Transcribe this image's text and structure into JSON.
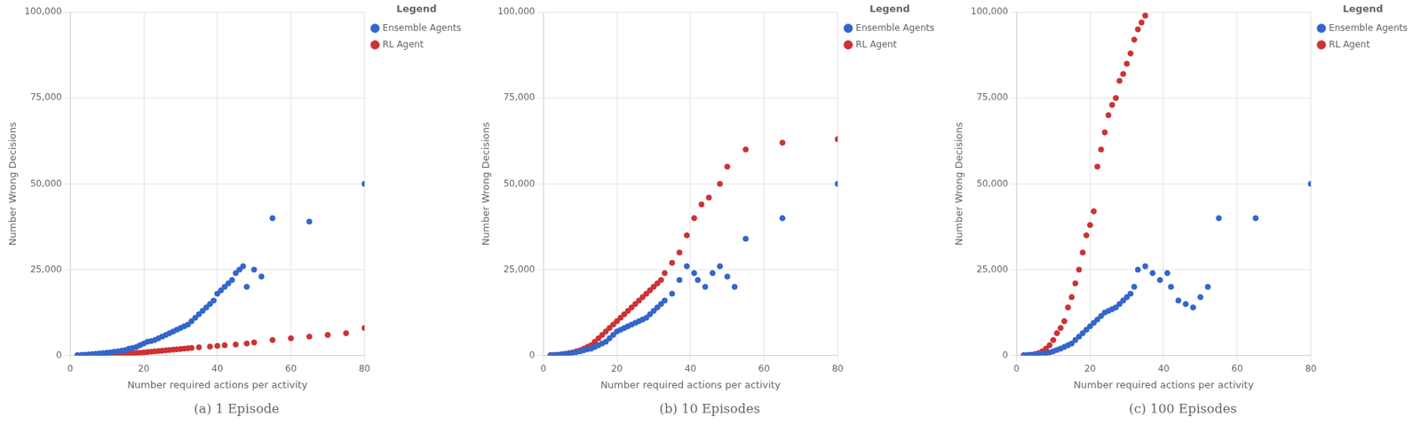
{
  "chart_data": [
    {
      "type": "scatter",
      "title": "(a) 1 Episode",
      "xlabel": "Number required actions per activity",
      "ylabel": "Number Wrong Decisions",
      "legend_title": "Legend",
      "legend": "upper right",
      "grid": true,
      "xlim": [
        0,
        80
      ],
      "xticks": [
        0,
        20,
        40,
        60,
        80
      ],
      "ylim": [
        0,
        100000
      ],
      "yticks": [
        0,
        {
          "value": 25000,
          "label": "25,000"
        },
        {
          "value": 50000,
          "label": "50,000"
        },
        {
          "value": 75000,
          "label": "75,000"
        },
        {
          "value": 100000,
          "label": "100,000"
        }
      ],
      "series": [
        {
          "name": "Ensemble Agents",
          "color": "#3366CC",
          "x": [
            2,
            3,
            4,
            5,
            6,
            7,
            8,
            9,
            10,
            11,
            12,
            13,
            14,
            15,
            16,
            17,
            18,
            19,
            20,
            21,
            22,
            23,
            24,
            25,
            26,
            27,
            28,
            29,
            30,
            31,
            32,
            33,
            34,
            35,
            36,
            37,
            38,
            39,
            40,
            41,
            42,
            43,
            44,
            45,
            46,
            47,
            48,
            50,
            52,
            55,
            65,
            80
          ],
          "values": [
            100,
            150,
            200,
            300,
            400,
            500,
            600,
            700,
            800,
            900,
            1100,
            1200,
            1400,
            1600,
            2000,
            2200,
            2500,
            3000,
            3500,
            4000,
            4200,
            4500,
            5000,
            5500,
            6000,
            6500,
            7000,
            7500,
            8000,
            8500,
            9000,
            10000,
            11000,
            12000,
            13000,
            14000,
            15000,
            16000,
            18000,
            19000,
            20000,
            21000,
            22000,
            24000,
            25000,
            26000,
            20000,
            25000,
            23000,
            40000,
            39000,
            50000
          ]
        },
        {
          "name": "RL Agent",
          "color": "#CC3333",
          "x": [
            2,
            3,
            4,
            5,
            6,
            7,
            8,
            9,
            10,
            11,
            12,
            13,
            14,
            15,
            16,
            17,
            18,
            19,
            20,
            21,
            22,
            23,
            24,
            25,
            26,
            27,
            28,
            29,
            30,
            31,
            32,
            33,
            35,
            38,
            40,
            42,
            45,
            48,
            50,
            55,
            60,
            65,
            70,
            75,
            80
          ],
          "values": [
            50,
            80,
            100,
            130,
            160,
            200,
            250,
            300,
            350,
            400,
            450,
            500,
            550,
            600,
            650,
            700,
            750,
            800,
            900,
            1000,
            1100,
            1200,
            1300,
            1400,
            1500,
            1600,
            1700,
            1800,
            1900,
            2000,
            2100,
            2200,
            2400,
            2600,
            2800,
            3000,
            3200,
            3500,
            3800,
            4500,
            5000,
            5500,
            6000,
            6500,
            8000
          ]
        }
      ]
    },
    {
      "type": "scatter",
      "title": "(b) 10 Episodes",
      "xlabel": "Number required actions per activity",
      "ylabel": "Number Wrong Decisions",
      "legend_title": "Legend",
      "legend": "upper right",
      "grid": true,
      "xlim": [
        0,
        80
      ],
      "xticks": [
        0,
        20,
        40,
        60,
        80
      ],
      "ylim": [
        0,
        100000
      ],
      "yticks": [
        0,
        {
          "value": 25000,
          "label": "25,000"
        },
        {
          "value": 50000,
          "label": "50,000"
        },
        {
          "value": 75000,
          "label": "75,000"
        },
        {
          "value": 100000,
          "label": "100,000"
        }
      ],
      "series": [
        {
          "name": "Ensemble Agents",
          "color": "#3366CC",
          "x": [
            2,
            3,
            4,
            5,
            6,
            7,
            8,
            9,
            10,
            11,
            12,
            13,
            14,
            15,
            16,
            17,
            18,
            19,
            20,
            21,
            22,
            23,
            24,
            25,
            26,
            27,
            28,
            29,
            30,
            31,
            32,
            33,
            35,
            37,
            39,
            41,
            42,
            44,
            46,
            48,
            50,
            52,
            55,
            65,
            80
          ],
          "values": [
            100,
            150,
            200,
            300,
            450,
            600,
            800,
            1000,
            1200,
            1500,
            1800,
            2000,
            2500,
            3000,
            3500,
            4000,
            5000,
            6000,
            7000,
            7500,
            8000,
            8500,
            9000,
            9500,
            10000,
            10500,
            11000,
            12000,
            13000,
            14000,
            15000,
            16000,
            18000,
            22000,
            26000,
            24000,
            22000,
            20000,
            24000,
            26000,
            23000,
            20000,
            34000,
            40000,
            50000
          ]
        },
        {
          "name": "RL Agent",
          "color": "#CC3333",
          "x": [
            2,
            3,
            4,
            5,
            6,
            7,
            8,
            9,
            10,
            11,
            12,
            13,
            14,
            15,
            16,
            17,
            18,
            19,
            20,
            21,
            22,
            23,
            24,
            25,
            26,
            27,
            28,
            29,
            30,
            31,
            32,
            33,
            35,
            37,
            39,
            41,
            43,
            45,
            48,
            50,
            55,
            65,
            80
          ],
          "values": [
            100,
            150,
            200,
            350,
            500,
            700,
            900,
            1200,
            1500,
            2000,
            2500,
            3000,
            4000,
            5000,
            6000,
            7000,
            8000,
            9000,
            10000,
            11000,
            12000,
            13000,
            14000,
            15000,
            16000,
            17000,
            18000,
            19000,
            20000,
            21000,
            22000,
            24000,
            27000,
            30000,
            35000,
            40000,
            44000,
            46000,
            50000,
            55000,
            60000,
            62000,
            63000
          ]
        }
      ]
    },
    {
      "type": "scatter",
      "title": "(c) 100 Episodes",
      "xlabel": "Number required actions per activity",
      "ylabel": "Number Wrong Decisions",
      "legend_title": "Legend",
      "legend": "upper right",
      "grid": true,
      "xlim": [
        0,
        80
      ],
      "xticks": [
        0,
        20,
        40,
        60,
        80
      ],
      "ylim": [
        0,
        100000
      ],
      "yticks": [
        0,
        {
          "value": 25000,
          "label": "25,000"
        },
        {
          "value": 50000,
          "label": "50,000"
        },
        {
          "value": 75000,
          "label": "75,000"
        },
        {
          "value": 100000,
          "label": "100,000"
        }
      ],
      "series": [
        {
          "name": "Ensemble Agents",
          "color": "#3366CC",
          "x": [
            2,
            3,
            4,
            5,
            6,
            7,
            8,
            9,
            10,
            11,
            12,
            13,
            14,
            15,
            16,
            17,
            18,
            19,
            20,
            21,
            22,
            23,
            24,
            25,
            26,
            27,
            28,
            29,
            30,
            31,
            32,
            33,
            35,
            37,
            39,
            41,
            42,
            44,
            46,
            48,
            50,
            52,
            55,
            65,
            80
          ],
          "values": [
            100,
            150,
            200,
            300,
            400,
            500,
            700,
            900,
            1200,
            1600,
            2000,
            2500,
            3000,
            3500,
            4500,
            5500,
            6500,
            7500,
            8500,
            9500,
            10500,
            11500,
            12500,
            13000,
            13500,
            14000,
            15000,
            16000,
            17000,
            18000,
            20000,
            25000,
            26000,
            24000,
            22000,
            24000,
            20000,
            16000,
            15000,
            14000,
            17000,
            20000,
            40000,
            40000,
            50000
          ]
        },
        {
          "name": "RL Agent",
          "color": "#CC3333",
          "x": [
            2,
            3,
            4,
            5,
            6,
            7,
            8,
            9,
            10,
            11,
            12,
            13,
            14,
            15,
            16,
            17,
            18,
            19,
            20,
            21,
            22,
            23,
            24,
            25,
            26,
            27,
            28,
            29,
            30,
            31,
            32,
            33,
            34,
            35
          ],
          "values": [
            50,
            100,
            200,
            400,
            700,
            1200,
            2000,
            3000,
            4500,
            6500,
            8000,
            10000,
            14000,
            17000,
            21000,
            25000,
            30000,
            35000,
            38000,
            42000,
            55000,
            60000,
            65000,
            70000,
            73000,
            75000,
            80000,
            82000,
            85000,
            88000,
            92000,
            95000,
            97000,
            99000
          ]
        }
      ]
    }
  ]
}
